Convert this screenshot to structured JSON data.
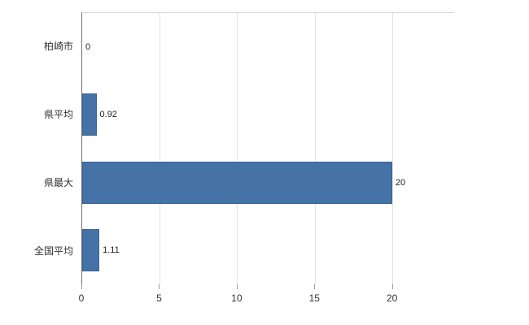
{
  "chart_data": {
    "type": "bar",
    "orientation": "horizontal",
    "title": "",
    "categories": [
      "柏崎市",
      "県平均",
      "県最大",
      "全国平均"
    ],
    "values": [
      0,
      0.92,
      20,
      1.11
    ],
    "data_labels": [
      "0",
      "0.92",
      "20",
      "1.11"
    ],
    "x_ticks": [
      0,
      5,
      10,
      15,
      20
    ],
    "x_tick_labels": [
      "0",
      "5",
      "10",
      "15",
      "20"
    ],
    "xlim": [
      0,
      24
    ],
    "grid": true,
    "legend_position": "none",
    "bar_color": "#4572a7",
    "grid_color": "#e3e3e3",
    "axis_line_color": "#707070"
  }
}
